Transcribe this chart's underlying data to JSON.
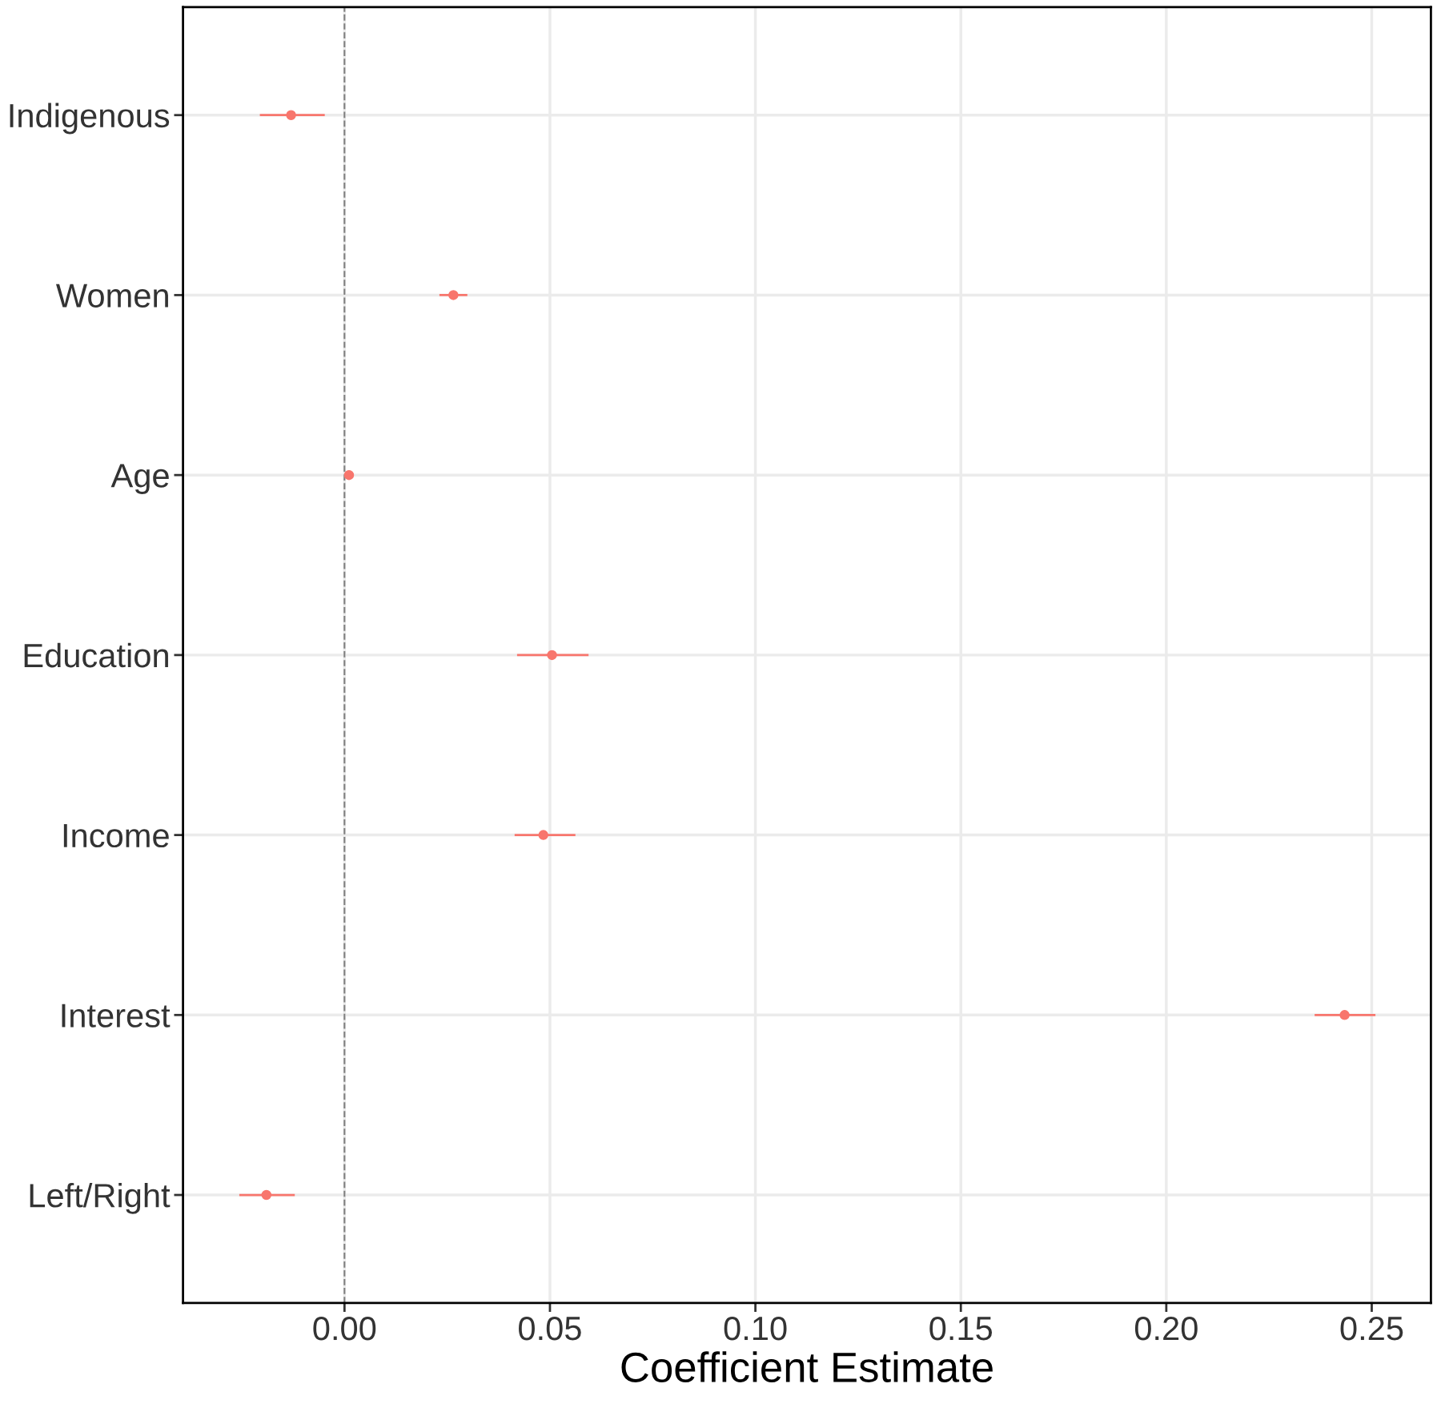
{
  "chart_data": {
    "type": "scatter",
    "orientation": "horizontal",
    "xlabel": "Coefficient Estimate",
    "categories": [
      "Indigenous",
      "Women",
      "Age",
      "Education",
      "Income",
      "Interest",
      "Left/Right"
    ],
    "series": [
      {
        "color": "#f8766d",
        "values": [
          -0.013,
          0.0265,
          0.0011,
          0.0505,
          0.0484,
          0.2434,
          -0.019
        ],
        "errors": [
          [
            -0.0206,
            -0.0048
          ],
          [
            0.0231,
            0.0299
          ],
          [
            0.0008,
            0.0014
          ],
          [
            0.042,
            0.0594
          ],
          [
            0.0414,
            0.0562
          ],
          [
            0.2361,
            0.2509
          ],
          [
            -0.0256,
            -0.0121
          ]
        ]
      }
    ],
    "xlim": [
      -0.0393,
      0.2644
    ],
    "xticks": [
      {
        "value": 0,
        "label": "0.00"
      },
      0.05,
      {
        "value": 0.1,
        "label": "0.10"
      },
      0.15,
      {
        "value": 0.2,
        "label": "0.20"
      },
      0.25
    ],
    "ref_lines": [
      {
        "axis": "x",
        "value": 0,
        "color": "#808080",
        "line_style": "dashed"
      }
    ],
    "grid": true,
    "marker": "circle"
  }
}
